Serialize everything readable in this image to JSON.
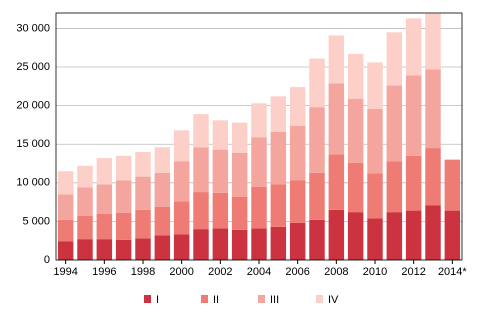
{
  "chart_data": {
    "type": "stacked_bar",
    "categories": [
      "1994",
      null,
      "1996",
      null,
      "1998",
      null,
      "2000",
      null,
      "2002",
      null,
      "2004",
      null,
      "2006",
      null,
      "2008",
      null,
      "2010",
      null,
      "2012",
      null,
      "2014*"
    ],
    "series": [
      {
        "name": "I",
        "color": "#cc3340",
        "values": [
          2400,
          2700,
          2700,
          2600,
          2800,
          3200,
          3300,
          4000,
          4100,
          3900,
          4100,
          4300,
          4800,
          5200,
          6500,
          6200,
          5400,
          6200,
          6400,
          7100,
          6400
        ]
      },
      {
        "name": "II",
        "color": "#ee7b74",
        "values": [
          2800,
          3000,
          3300,
          3500,
          3700,
          3700,
          4300,
          4800,
          4600,
          4300,
          5400,
          5500,
          5500,
          6100,
          7200,
          6400,
          5800,
          6600,
          7100,
          7400,
          6600
        ]
      },
      {
        "name": "III",
        "color": "#f4a59e",
        "values": [
          3300,
          3700,
          3800,
          4200,
          4300,
          4400,
          5200,
          5800,
          5600,
          5700,
          6400,
          6800,
          7100,
          8500,
          9200,
          8300,
          8400,
          9800,
          10400,
          10200,
          null
        ]
      },
      {
        "name": "IV",
        "color": "#fccfc8",
        "values": [
          3000,
          2800,
          3400,
          3200,
          3200,
          3300,
          4000,
          4300,
          3800,
          3900,
          4400,
          4600,
          5000,
          6300,
          6200,
          5800,
          6000,
          6900,
          7400,
          7200,
          null
        ]
      }
    ],
    "ylim": [
      0,
      32000
    ],
    "yticks": [
      0,
      {
        "value": 5000,
        "label": "5 000"
      },
      {
        "value": 10000,
        "label": "10 000"
      },
      {
        "value": 15000,
        "label": "15 000"
      },
      {
        "value": 20000,
        "label": "20 000"
      },
      {
        "value": 25000,
        "label": "25 000"
      },
      {
        "value": 30000,
        "label": "30 000"
      }
    ],
    "grid": true,
    "legend": "bottom"
  }
}
